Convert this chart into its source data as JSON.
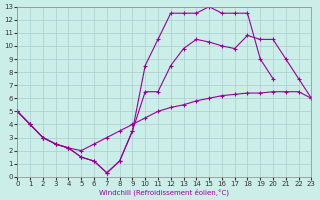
{
  "xlabel": "Windchill (Refroidissement éolien,°C)",
  "xlim": [
    0,
    23
  ],
  "ylim": [
    0,
    13
  ],
  "background_color": "#cceee8",
  "grid_color": "#aacccc",
  "line_color": "#990099",
  "figsize": [
    3.2,
    2.0
  ],
  "dpi": 100,
  "line1_x": [
    0,
    1,
    2,
    3,
    4,
    5,
    6,
    7,
    8,
    9,
    10,
    11,
    12,
    13,
    14,
    15,
    16,
    17,
    18,
    19,
    20,
    21,
    22,
    23
  ],
  "line1_y": [
    5.0,
    4.0,
    3.0,
    2.5,
    2.2,
    2.0,
    2.5,
    3.0,
    3.5,
    4.0,
    4.5,
    5.0,
    5.3,
    5.5,
    5.8,
    6.0,
    6.2,
    6.3,
    6.4,
    6.4,
    6.5,
    6.5,
    6.5,
    6.0
  ],
  "line2_x": [
    0,
    1,
    2,
    3,
    4,
    5,
    6,
    7,
    8,
    9,
    10,
    11,
    12,
    13,
    14,
    15,
    16,
    17,
    18,
    19,
    20,
    21,
    22,
    23
  ],
  "line2_y": [
    5.0,
    4.0,
    3.0,
    2.5,
    2.2,
    1.5,
    1.2,
    0.3,
    1.2,
    3.5,
    6.5,
    6.5,
    8.5,
    9.8,
    10.5,
    10.3,
    10.0,
    9.8,
    10.8,
    10.5,
    10.5,
    9.0,
    7.5,
    6.0
  ],
  "line3_x": [
    0,
    1,
    2,
    3,
    4,
    5,
    6,
    7,
    8,
    9,
    10,
    11,
    12,
    13,
    14,
    15,
    16,
    17,
    18,
    19,
    20,
    21,
    22,
    23
  ],
  "line3_y": [
    5.0,
    4.0,
    3.0,
    2.5,
    2.2,
    1.5,
    1.2,
    0.3,
    1.2,
    3.5,
    8.5,
    10.5,
    12.5,
    12.5,
    12.5,
    13.0,
    12.5,
    12.5,
    12.5,
    9.0,
    7.5,
    null,
    null,
    null
  ]
}
